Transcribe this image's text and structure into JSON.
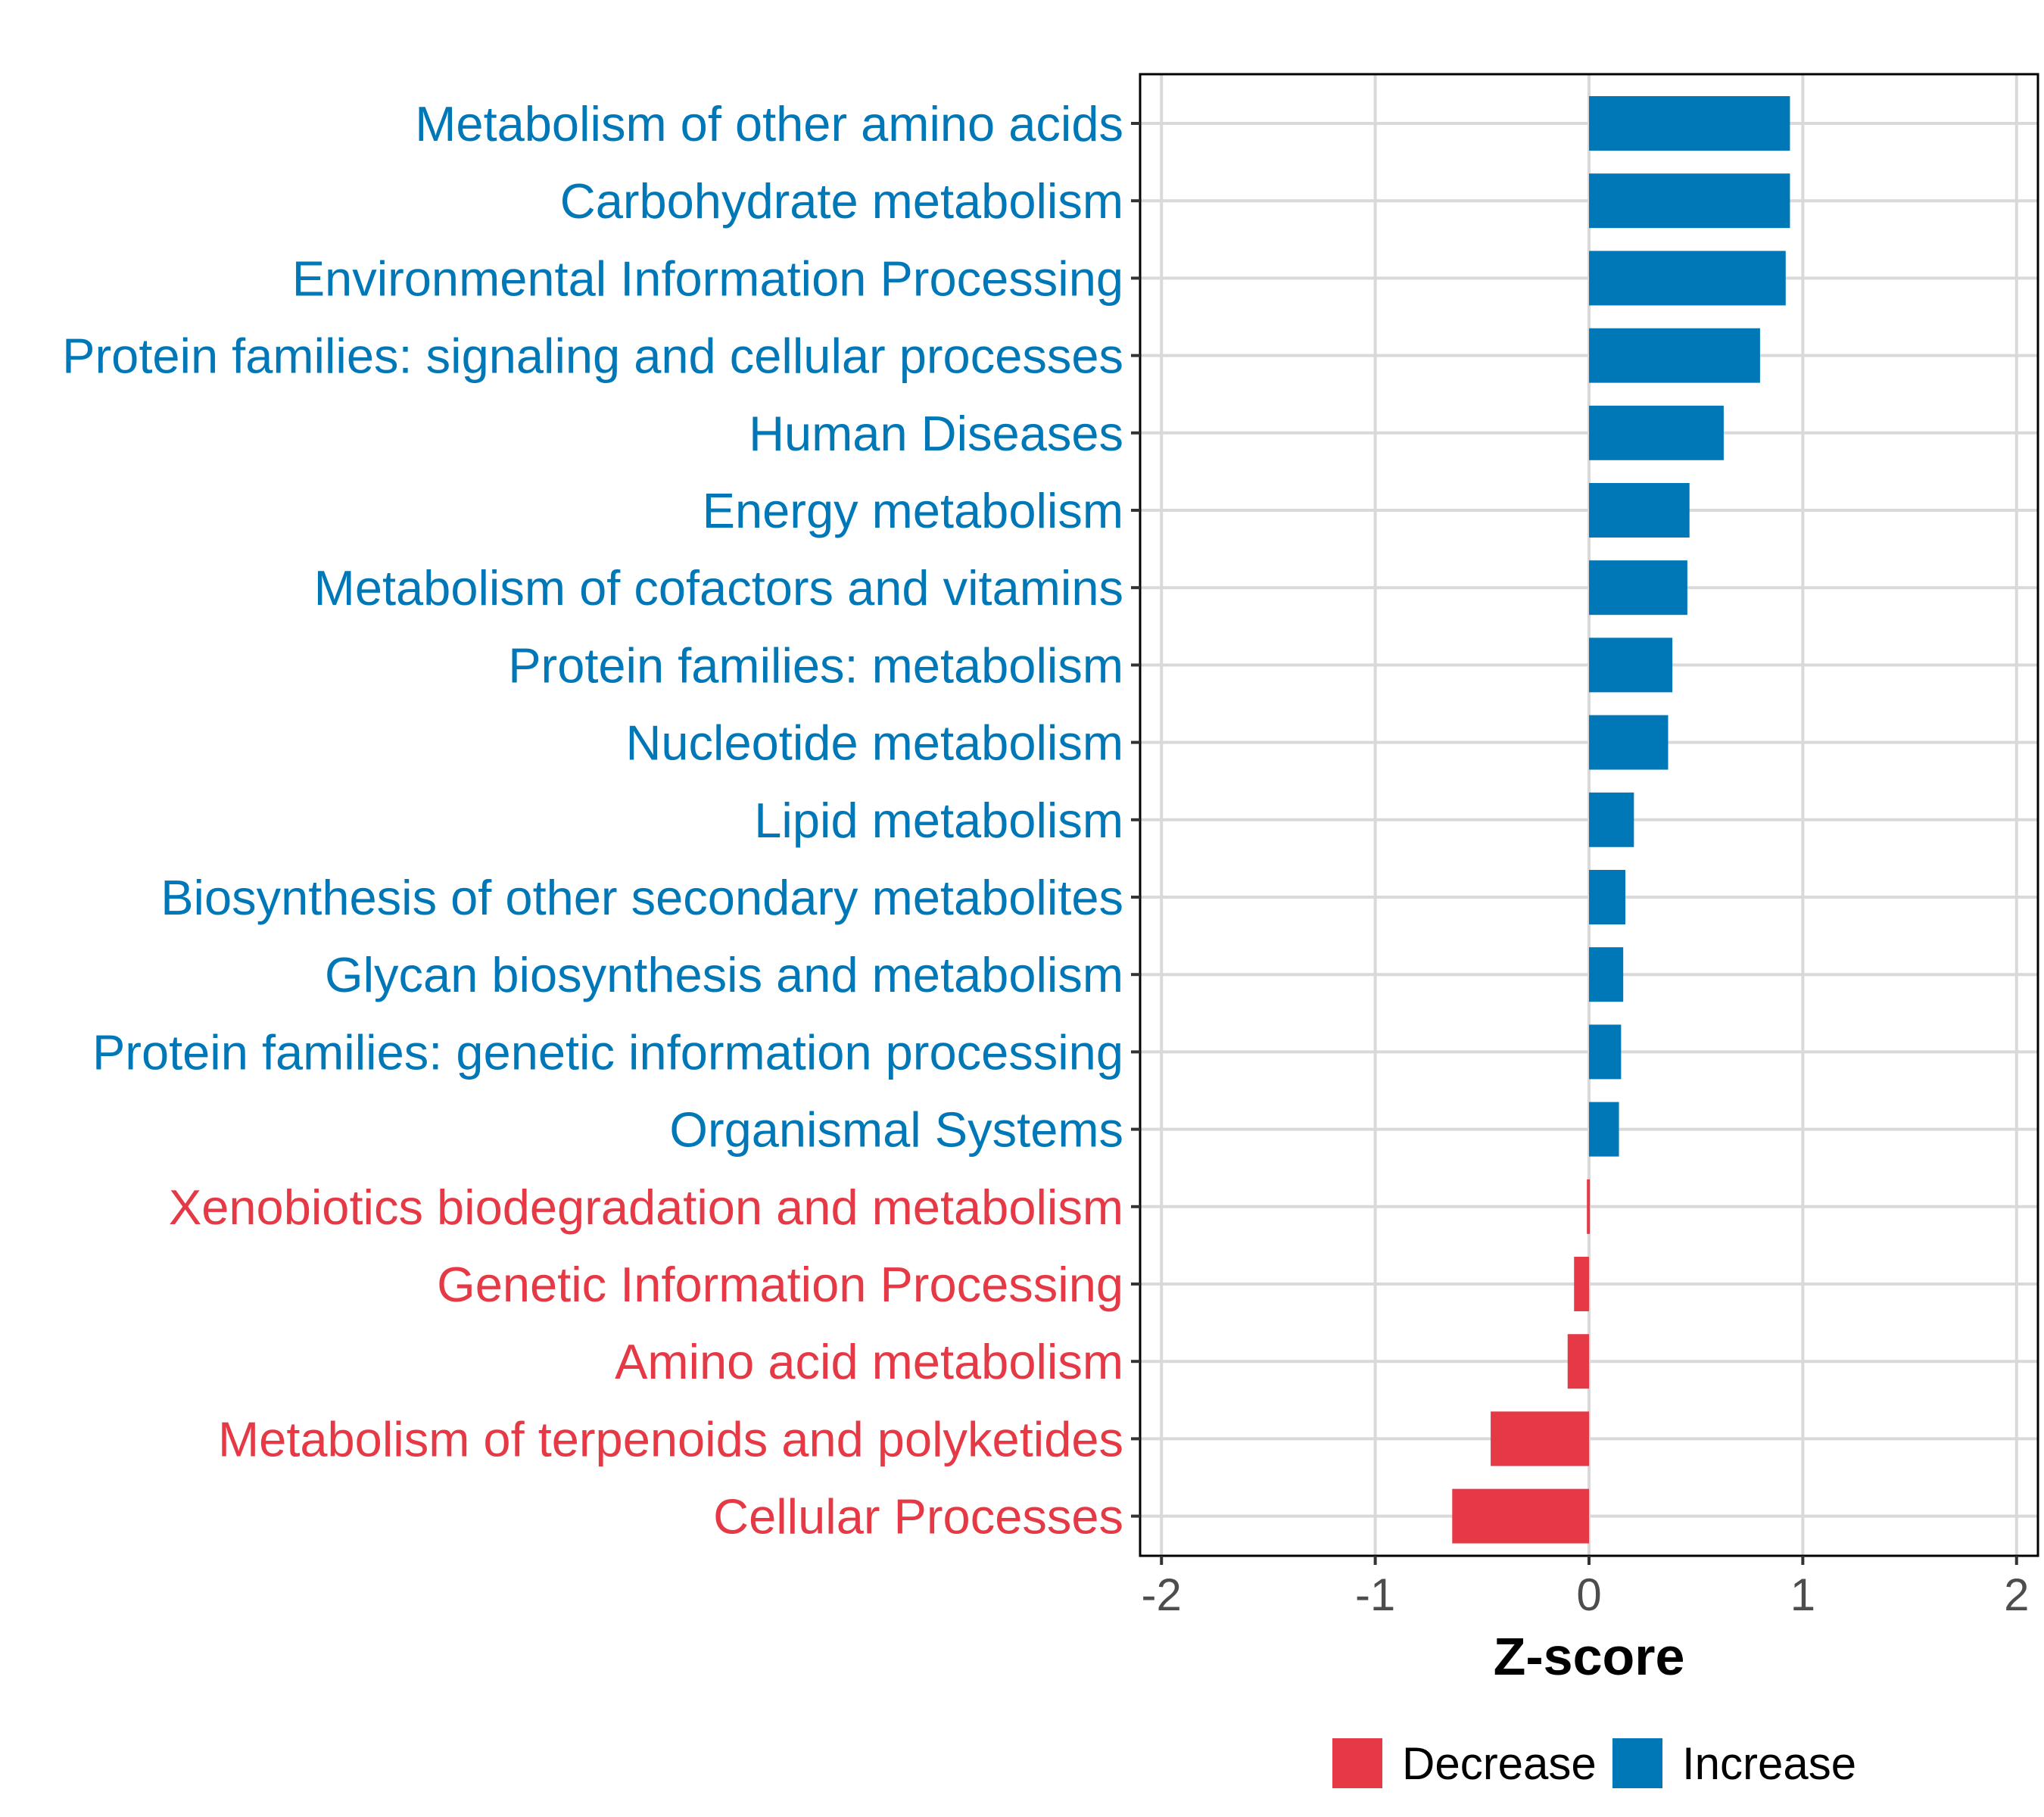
{
  "chart_data": {
    "type": "bar",
    "orientation": "horizontal",
    "xlabel": "Z-score",
    "ylabel": "",
    "xlim": [
      -2.1,
      2.1
    ],
    "xticks": [
      -2,
      -1,
      0,
      1,
      2
    ],
    "xtick_labels": [
      "-2",
      "-1",
      "0",
      "1",
      "2"
    ],
    "grid": true,
    "legend_position": "bottom",
    "colors": {
      "Decrease": "#E63946",
      "Increase": "#0077B6",
      "grid": "#d9d9d9",
      "frame": "#000000"
    },
    "legend": [
      {
        "label": "Decrease",
        "color": "#E63946"
      },
      {
        "label": "Increase",
        "color": "#0077B6"
      }
    ],
    "bars": [
      {
        "category": "Metabolism of other amino acids",
        "value": 0.94,
        "group": "Increase"
      },
      {
        "category": "Carbohydrate metabolism",
        "value": 0.94,
        "group": "Increase"
      },
      {
        "category": "Environmental Information Processing",
        "value": 0.92,
        "group": "Increase"
      },
      {
        "category": "Protein families: signaling and cellular processes",
        "value": 0.8,
        "group": "Increase"
      },
      {
        "category": "Human Diseases",
        "value": 0.63,
        "group": "Increase"
      },
      {
        "category": "Energy metabolism",
        "value": 0.47,
        "group": "Increase"
      },
      {
        "category": "Metabolism of cofactors and vitamins",
        "value": 0.46,
        "group": "Increase"
      },
      {
        "category": "Protein families: metabolism",
        "value": 0.39,
        "group": "Increase"
      },
      {
        "category": "Nucleotide metabolism",
        "value": 0.37,
        "group": "Increase"
      },
      {
        "category": "Lipid metabolism",
        "value": 0.21,
        "group": "Increase"
      },
      {
        "category": "Biosynthesis of other secondary metabolites",
        "value": 0.17,
        "group": "Increase"
      },
      {
        "category": "Glycan biosynthesis and metabolism",
        "value": 0.16,
        "group": "Increase"
      },
      {
        "category": "Protein families: genetic information processing",
        "value": 0.15,
        "group": "Increase"
      },
      {
        "category": "Organismal Systems",
        "value": 0.14,
        "group": "Increase"
      },
      {
        "category": "Xenobiotics biodegradation and metabolism",
        "value": -0.01,
        "group": "Decrease"
      },
      {
        "category": "Genetic Information Processing",
        "value": -0.07,
        "group": "Decrease"
      },
      {
        "category": "Amino acid metabolism",
        "value": -0.1,
        "group": "Decrease"
      },
      {
        "category": "Metabolism of terpenoids and polyketides",
        "value": -0.46,
        "group": "Decrease"
      },
      {
        "category": "Cellular Processes",
        "value": -0.64,
        "group": "Decrease"
      }
    ]
  }
}
